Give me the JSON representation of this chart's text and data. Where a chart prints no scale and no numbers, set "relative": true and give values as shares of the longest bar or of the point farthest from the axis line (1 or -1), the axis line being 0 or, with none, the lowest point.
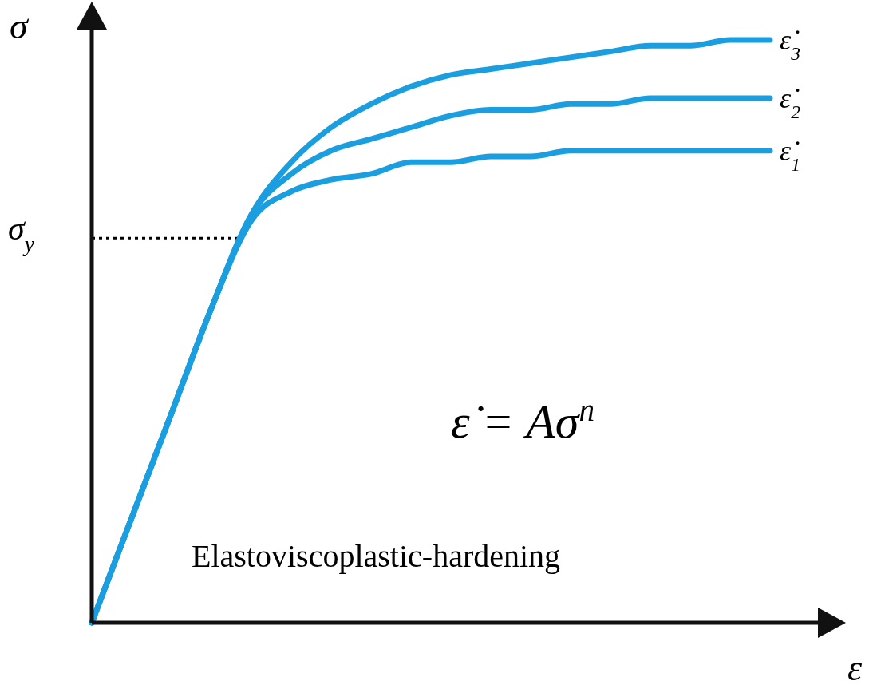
{
  "chart_data": {
    "type": "line",
    "relative": true,
    "xlabel": "ε",
    "ylabel": "σ",
    "categories": [
      null,
      null,
      null,
      null,
      null,
      null,
      null,
      null,
      null,
      null,
      null,
      null,
      null,
      null,
      null,
      null,
      null,
      null
    ],
    "series": [
      {
        "name": "ε̇$_{3}$",
        "color": "#1a9ee0",
        "values": [
          0,
          0.18,
          0.36,
          0.54,
          0.7,
          0.79,
          0.85,
          0.89,
          0.92,
          0.94,
          0.95,
          0.96,
          0.97,
          0.98,
          0.99,
          0.99,
          1.0,
          1.0
        ]
      },
      {
        "name": "ε̇$_{2}$",
        "color": "#1a9ee0",
        "values": [
          0,
          0.18,
          0.36,
          0.54,
          0.7,
          0.77,
          0.81,
          0.83,
          0.85,
          0.87,
          0.88,
          0.88,
          0.89,
          0.89,
          0.9,
          0.9,
          0.9,
          0.9
        ]
      },
      {
        "name": "ε̇$_{1}$",
        "color": "#1a9ee0",
        "values": [
          0,
          0.18,
          0.36,
          0.54,
          0.69,
          0.74,
          0.76,
          0.77,
          0.79,
          0.79,
          0.8,
          0.8,
          0.81,
          0.81,
          0.81,
          0.81,
          0.81,
          0.81
        ]
      }
    ],
    "line_style": "solid",
    "ref_lines": [
      {
        "axis": "y",
        "value": 0.66,
        "label": "σ$_{y}$",
        "line_style": "dotted",
        "color": "#000000"
      }
    ],
    "annotations": [
      "ε̇ = Aσ$^{n}$",
      "Elastoviscoplastic-hardening"
    ]
  }
}
